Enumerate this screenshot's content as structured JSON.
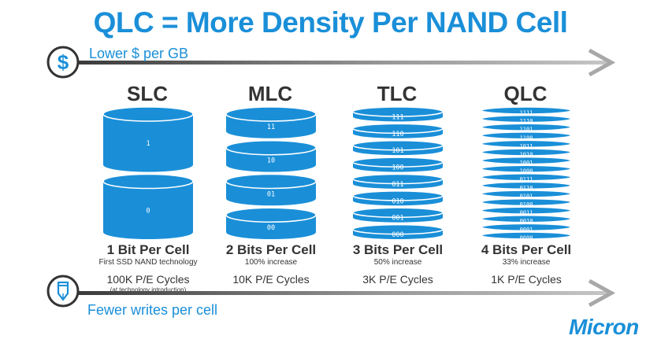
{
  "title": "QLC = More Density Per NAND Cell",
  "top_axis": {
    "label": "Lower $ per GB",
    "icon": "dollar-icon"
  },
  "bottom_axis": {
    "label": "Fewer writes per cell",
    "icon": "pencil-icon"
  },
  "accent_color": "#1a8fd8",
  "columns": [
    {
      "type": "SLC",
      "bits_label": "1 Bit Per Cell",
      "subtitle": "First SSD NAND technology",
      "cycles": "100K P/E Cycles",
      "cycles_note": "(at technology introduction)",
      "states": [
        "1",
        "0"
      ]
    },
    {
      "type": "MLC",
      "bits_label": "2 Bits Per Cell",
      "subtitle": "100% increase",
      "cycles": "10K P/E Cycles",
      "cycles_note": "",
      "states": [
        "11",
        "10",
        "01",
        "00"
      ]
    },
    {
      "type": "TLC",
      "bits_label": "3 Bits Per Cell",
      "subtitle": "50% increase",
      "cycles": "3K P/E Cycles",
      "cycles_note": "",
      "states": [
        "111",
        "110",
        "101",
        "100",
        "011",
        "010",
        "001",
        "000"
      ]
    },
    {
      "type": "QLC",
      "bits_label": "4 Bits Per Cell",
      "subtitle": "33% increase",
      "cycles": "1K P/E Cycles",
      "cycles_note": "",
      "states": [
        "1111",
        "1110",
        "1101",
        "1100",
        "1011",
        "1010",
        "1001",
        "1000",
        "0111",
        "0110",
        "0101",
        "0100",
        "0011",
        "0010",
        "0001",
        "0000"
      ]
    }
  ],
  "logo": "Micron"
}
